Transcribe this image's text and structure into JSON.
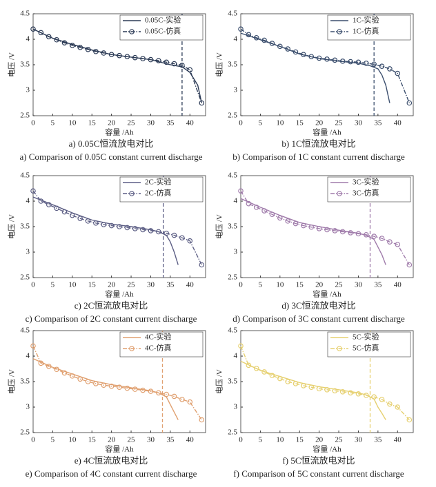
{
  "chart_data": [
    {
      "type": "line",
      "caption": "a) 0.05C恒流放电对比",
      "caption_en": "a) Comparison of 0.05C constant current discharge",
      "xlabel": "容量 /Ah",
      "ylabel": "电压 /V",
      "xlim": [
        0,
        44
      ],
      "ylim": [
        2.5,
        4.5
      ],
      "xticks": [
        0,
        5,
        10,
        15,
        20,
        25,
        30,
        35,
        40
      ],
      "yticks": [
        2.5,
        3,
        3.5,
        4,
        4.5
      ],
      "vline": 38,
      "legend": "upper right",
      "series": [
        {
          "name": "0.05C-实验",
          "color": "#2b3a55",
          "style": "solid",
          "x": [
            0,
            5,
            10,
            15,
            20,
            25,
            30,
            35,
            38,
            40,
            42,
            43
          ],
          "values": [
            4.2,
            4.02,
            3.9,
            3.79,
            3.7,
            3.65,
            3.6,
            3.5,
            3.46,
            3.35,
            3.1,
            2.75
          ]
        },
        {
          "name": "0.05C-仿真",
          "color": "#2b3a55",
          "style": "dashdot",
          "marker": "circle",
          "x": [
            0,
            2,
            4,
            6,
            8,
            10,
            12,
            14,
            16,
            18,
            20,
            22,
            24,
            26,
            28,
            30,
            32,
            34,
            36,
            38,
            40,
            43
          ],
          "values": [
            4.2,
            4.13,
            4.05,
            3.99,
            3.93,
            3.88,
            3.84,
            3.8,
            3.76,
            3.73,
            3.7,
            3.68,
            3.66,
            3.64,
            3.62,
            3.6,
            3.58,
            3.55,
            3.52,
            3.49,
            3.4,
            2.75
          ]
        }
      ]
    },
    {
      "type": "line",
      "caption": "b) 1C恒流放电对比",
      "caption_en": "b) Comparison of 1C constant current discharge",
      "xlabel": "容量 /Ah",
      "ylabel": "电压 /V",
      "xlim": [
        0,
        44
      ],
      "ylim": [
        2.5,
        4.5
      ],
      "xticks": [
        0,
        5,
        10,
        15,
        20,
        25,
        30,
        35,
        40
      ],
      "yticks": [
        2.5,
        3,
        3.5,
        4,
        4.5
      ],
      "vline": 34,
      "legend": "upper right",
      "series": [
        {
          "name": "1C-实验",
          "color": "#3c4f6e",
          "style": "solid",
          "x": [
            0,
            5,
            10,
            15,
            20,
            25,
            30,
            33,
            35,
            36,
            37,
            38
          ],
          "values": [
            4.12,
            3.99,
            3.86,
            3.71,
            3.62,
            3.57,
            3.53,
            3.48,
            3.42,
            3.3,
            3.1,
            2.75
          ]
        },
        {
          "name": "1C-仿真",
          "color": "#3c4f6e",
          "style": "dashdot",
          "marker": "circle",
          "x": [
            0,
            2,
            4,
            6,
            8,
            10,
            12,
            14,
            16,
            18,
            20,
            22,
            24,
            26,
            28,
            30,
            32,
            34,
            36,
            38,
            40,
            43
          ],
          "values": [
            4.2,
            4.09,
            4.03,
            3.98,
            3.92,
            3.86,
            3.81,
            3.75,
            3.7,
            3.66,
            3.63,
            3.61,
            3.59,
            3.57,
            3.56,
            3.55,
            3.53,
            3.51,
            3.47,
            3.42,
            3.33,
            2.75
          ]
        }
      ]
    },
    {
      "type": "line",
      "caption": "c) 2C恒流放电对比",
      "caption_en": "c) Comparison of 2C constant current discharge",
      "xlabel": "容量 /Ah",
      "ylabel": "电压 /V",
      "xlim": [
        0,
        44
      ],
      "ylim": [
        2.5,
        4.5
      ],
      "xticks": [
        0,
        5,
        10,
        15,
        20,
        25,
        30,
        35,
        40
      ],
      "yticks": [
        2.5,
        3,
        3.5,
        4,
        4.5
      ],
      "vline": 33.2,
      "legend": "upper right",
      "series": [
        {
          "name": "2C-实验",
          "color": "#5d5f85",
          "style": "solid",
          "x": [
            0,
            5,
            10,
            15,
            20,
            25,
            30,
            32,
            34,
            35,
            36,
            37
          ],
          "values": [
            4.08,
            3.93,
            3.77,
            3.63,
            3.55,
            3.5,
            3.44,
            3.4,
            3.33,
            3.2,
            3.0,
            2.75
          ]
        },
        {
          "name": "2C-仿真",
          "color": "#5d5f85",
          "style": "dashdot",
          "marker": "circle",
          "x": [
            0,
            2,
            4,
            6,
            8,
            10,
            12,
            14,
            16,
            18,
            20,
            22,
            24,
            26,
            28,
            30,
            32,
            34,
            36,
            38,
            40,
            43
          ],
          "values": [
            4.2,
            4.0,
            3.93,
            3.86,
            3.79,
            3.72,
            3.66,
            3.61,
            3.57,
            3.54,
            3.52,
            3.5,
            3.48,
            3.46,
            3.44,
            3.42,
            3.4,
            3.37,
            3.33,
            3.28,
            3.22,
            2.75
          ]
        }
      ]
    },
    {
      "type": "line",
      "caption": "d) 3C恒流放电对比",
      "caption_en": "d) Comparison of 3C constant current discharge",
      "xlabel": "容量 /Ah",
      "ylabel": "电压 /V",
      "xlim": [
        0,
        44
      ],
      "ylim": [
        2.5,
        4.5
      ],
      "xticks": [
        0,
        5,
        10,
        15,
        20,
        25,
        30,
        35,
        40
      ],
      "yticks": [
        2.5,
        3,
        3.5,
        4,
        4.5
      ],
      "vline": 33,
      "legend": "upper right",
      "series": [
        {
          "name": "3C-实验",
          "color": "#a07cab",
          "style": "solid",
          "x": [
            0,
            5,
            10,
            15,
            20,
            25,
            30,
            32,
            34,
            35,
            36,
            37
          ],
          "values": [
            4.05,
            3.88,
            3.72,
            3.58,
            3.5,
            3.43,
            3.37,
            3.33,
            3.25,
            3.1,
            2.95,
            2.75
          ]
        },
        {
          "name": "3C-仿真",
          "color": "#a07cab",
          "style": "dashdot",
          "marker": "circle",
          "x": [
            0,
            2,
            4,
            6,
            8,
            10,
            12,
            14,
            16,
            18,
            20,
            22,
            24,
            26,
            28,
            30,
            32,
            34,
            36,
            38,
            40,
            43
          ],
          "values": [
            4.2,
            3.95,
            3.88,
            3.81,
            3.74,
            3.67,
            3.61,
            3.56,
            3.52,
            3.49,
            3.46,
            3.44,
            3.42,
            3.4,
            3.38,
            3.36,
            3.34,
            3.31,
            3.27,
            3.2,
            3.15,
            2.75
          ]
        }
      ]
    },
    {
      "type": "line",
      "caption": "e) 4C恒流放电对比",
      "caption_en": "e) Comparison of 4C constant current discharge",
      "xlabel": "容量 /Ah",
      "ylabel": "电压 /V",
      "xlim": [
        0,
        44
      ],
      "ylim": [
        2.5,
        4.5
      ],
      "xticks": [
        0,
        5,
        10,
        15,
        20,
        25,
        30,
        35,
        40
      ],
      "yticks": [
        2.5,
        3,
        3.5,
        4,
        4.5
      ],
      "vline": 33,
      "legend": "upper right",
      "series": [
        {
          "name": "4C-实验",
          "color": "#e0a070",
          "style": "solid",
          "x": [
            0,
            5,
            10,
            15,
            20,
            25,
            30,
            32,
            34,
            35,
            36,
            37
          ],
          "values": [
            3.95,
            3.78,
            3.65,
            3.52,
            3.44,
            3.38,
            3.32,
            3.28,
            3.2,
            3.05,
            2.9,
            2.75
          ]
        },
        {
          "name": "4C-仿真",
          "color": "#e0a070",
          "style": "dashdot",
          "marker": "circle",
          "x": [
            0,
            2,
            4,
            6,
            8,
            10,
            12,
            14,
            16,
            18,
            20,
            22,
            24,
            26,
            28,
            30,
            32,
            34,
            36,
            38,
            40,
            43
          ],
          "values": [
            4.2,
            3.86,
            3.8,
            3.74,
            3.67,
            3.61,
            3.55,
            3.5,
            3.46,
            3.43,
            3.41,
            3.39,
            3.37,
            3.35,
            3.33,
            3.31,
            3.28,
            3.25,
            3.21,
            3.15,
            3.1,
            2.75
          ]
        }
      ]
    },
    {
      "type": "line",
      "caption": "f) 5C恒流放电对比",
      "caption_en": "f) Comparison of 5C constant current discharge",
      "xlabel": "容量 /Ah",
      "ylabel": "电压 /V",
      "xlim": [
        0,
        44
      ],
      "ylim": [
        2.5,
        4.5
      ],
      "xticks": [
        0,
        5,
        10,
        15,
        20,
        25,
        30,
        35,
        40
      ],
      "yticks": [
        2.5,
        3,
        3.5,
        4,
        4.5
      ],
      "vline": 33,
      "legend": "upper right",
      "series": [
        {
          "name": "5C-实验",
          "color": "#e6d070",
          "style": "solid",
          "x": [
            0,
            5,
            10,
            15,
            20,
            25,
            30,
            32,
            34,
            35,
            36,
            37
          ],
          "values": [
            3.9,
            3.72,
            3.6,
            3.48,
            3.4,
            3.34,
            3.28,
            3.24,
            3.16,
            3.0,
            2.88,
            2.75
          ]
        },
        {
          "name": "5C-仿真",
          "color": "#e6d070",
          "style": "dashdot",
          "marker": "circle",
          "x": [
            0,
            2,
            4,
            6,
            8,
            10,
            12,
            14,
            16,
            18,
            20,
            22,
            24,
            26,
            28,
            30,
            32,
            34,
            36,
            38,
            40,
            43
          ],
          "values": [
            4.2,
            3.82,
            3.76,
            3.69,
            3.62,
            3.56,
            3.5,
            3.46,
            3.42,
            3.39,
            3.36,
            3.34,
            3.32,
            3.3,
            3.28,
            3.26,
            3.23,
            3.2,
            3.15,
            3.06,
            3.0,
            2.75
          ]
        }
      ]
    }
  ]
}
